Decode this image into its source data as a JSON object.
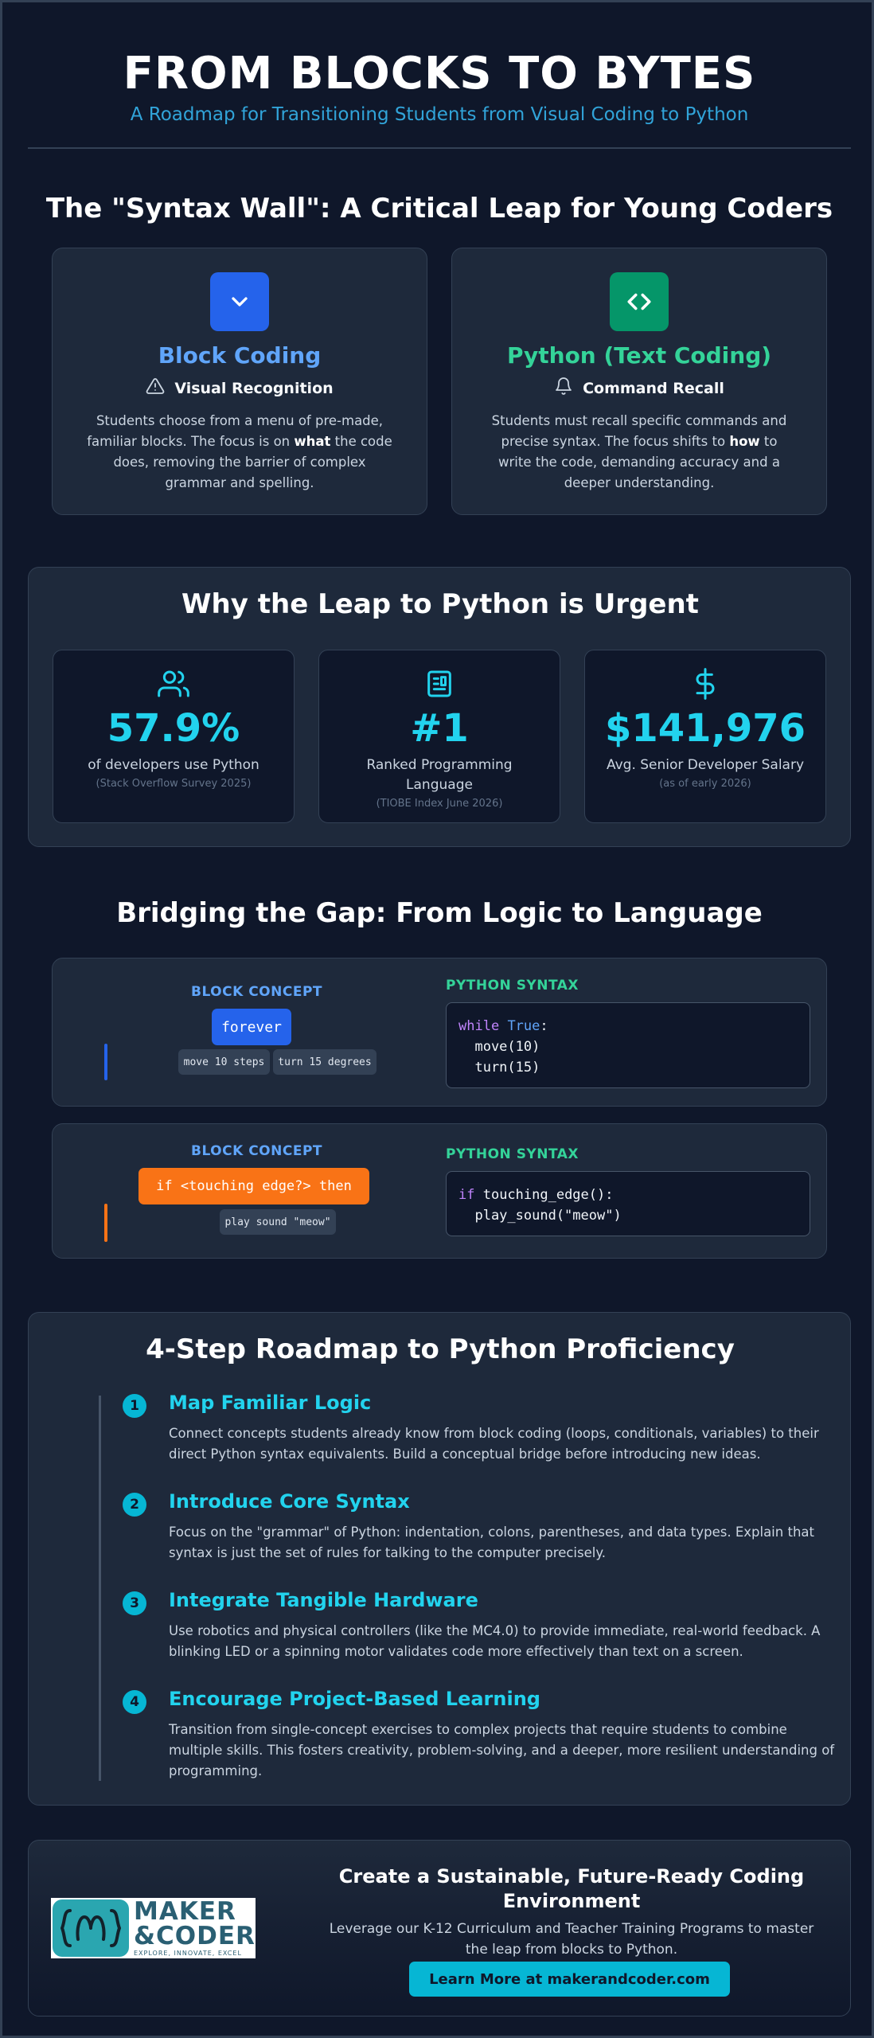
{
  "header": {
    "title": "FROM BLOCKS TO BYTES",
    "subtitle": "A Roadmap for Transitioning Students from Visual Coding to Python"
  },
  "syntax_wall": {
    "heading": "The \"Syntax Wall\": A Critical Leap for Young Coders",
    "block": {
      "icon": "chevron-down-icon",
      "title": "Block Coding",
      "sub_icon": "warning-triangle-icon",
      "subtitle": "Visual Recognition",
      "desc_1": "Students choose from a menu of pre-made, familiar blocks. The focus is on ",
      "desc_bold": "what",
      "desc_2": " the code does, removing the barrier of complex grammar and spelling.",
      "accent": "#60a5fa"
    },
    "python": {
      "icon": "code-brackets-icon",
      "title": "Python (Text Coding)",
      "sub_icon": "bell-icon",
      "subtitle": "Command Recall",
      "desc_1": "Students must recall specific commands and precise syntax. The focus shifts to ",
      "desc_bold": "how",
      "desc_2": " to write the code, demanding accuracy and a deeper understanding.",
      "accent": "#34d399"
    }
  },
  "urgent": {
    "heading": "Why the Leap to Python is Urgent",
    "stats": [
      {
        "icon": "users-icon",
        "value": "57.9%",
        "label": "of developers use Python",
        "source": "(Stack Overflow Survey 2025)"
      },
      {
        "icon": "ranking-chart-icon",
        "value": "#1",
        "label": "Ranked Programming Language",
        "source": "(TIOBE Index June 2026)"
      },
      {
        "icon": "dollar-icon",
        "value": "$141,976",
        "label": "Avg. Senior Developer Salary",
        "source": "(as of early 2026)"
      }
    ]
  },
  "bridge": {
    "heading": "Bridging the Gap: From Logic to Language",
    "examples": [
      {
        "block_label": "BLOCK CONCEPT",
        "python_label": "PYTHON SYNTAX",
        "main_block": "forever",
        "chips": [
          "move 10 steps",
          "turn 15 degrees"
        ],
        "code": {
          "kw": "while",
          "val": "True",
          "rest": ":",
          "line2": "  move(10)",
          "line3": "  turn(15)"
        }
      },
      {
        "block_label": "BLOCK CONCEPT",
        "python_label": "PYTHON SYNTAX",
        "main_block": "if <touching edge?> then",
        "chips": [
          "play sound \"meow\""
        ],
        "code": {
          "kw": "if",
          "rest": " touching_edge():",
          "line2": "  play_sound(\"meow\")"
        }
      }
    ]
  },
  "roadmap": {
    "heading": "4-Step Roadmap to Python Proficiency",
    "steps": [
      {
        "num": "1",
        "title": "Map Familiar Logic",
        "text": "Connect concepts students already know from block coding (loops, conditionals, variables) to their direct Python syntax equivalents. Build a conceptual bridge before introducing new ideas."
      },
      {
        "num": "2",
        "title": "Introduce Core Syntax",
        "text": "Focus on the \"grammar\" of Python: indentation, colons, parentheses, and data types. Explain that syntax is just the set of rules for talking to the computer precisely."
      },
      {
        "num": "3",
        "title": "Integrate Tangible Hardware",
        "text": "Use robotics and physical controllers (like the MC4.0) to provide immediate, real-world feedback. A blinking LED or a spinning motor validates code more effectively than text on a screen."
      },
      {
        "num": "4",
        "title": "Encourage Project-Based Learning",
        "text": "Transition from single-concept exercises to complex projects that require students to combine multiple skills. This fosters creativity, problem-solving, and a deeper, more resilient understanding of programming."
      }
    ]
  },
  "cta": {
    "logo_line1": "MAKER",
    "logo_line2": "&CODER",
    "logo_tagline": "EXPLORE, INNOVATE, EXCEL",
    "title": "Create a Sustainable, Future-Ready Coding Environment",
    "text": "Leverage our K-12 Curriculum and Teacher Training Programs to master the leap from blocks to Python.",
    "button": "Learn More at makerandcoder.com"
  },
  "colors": {
    "background": "#0f172a",
    "card": "#1e293b",
    "accent_cyan": "#22d3ee",
    "block_blue": "#2563eb",
    "python_green": "#059669",
    "block_orange": "#f97316"
  }
}
